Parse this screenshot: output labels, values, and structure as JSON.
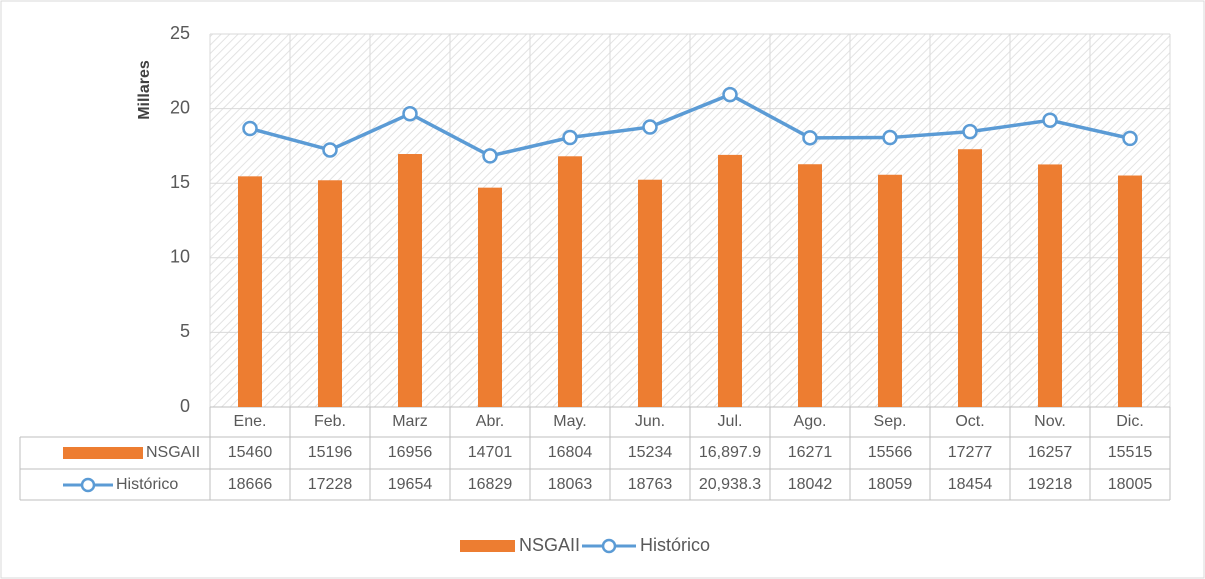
{
  "chart_data": {
    "type": "bar",
    "y_label": "Millares",
    "categories": [
      "Ene.",
      "Feb.",
      "Marz",
      "Abr.",
      "May.",
      "Jun.",
      "Jul.",
      "Ago.",
      "Sep.",
      "Oct.",
      "Nov.",
      "Dic."
    ],
    "series": [
      {
        "name": "NSGAII",
        "type": "bar",
        "color": "#ed7d31",
        "values": [
          15.46,
          15.196,
          16.956,
          14.701,
          16.804,
          15.234,
          16.8979,
          16.271,
          15.566,
          17.277,
          16.257,
          15.515
        ],
        "value_labels": [
          "15460",
          "15196",
          "16956",
          "14701",
          "16804",
          "15234",
          "16,897.9",
          "16271",
          "15566",
          "17277",
          "16257",
          "15515"
        ]
      },
      {
        "name": "Histórico",
        "type": "line",
        "color": "#5b9bd5",
        "values": [
          18.666,
          17.228,
          19.654,
          16.829,
          18.063,
          18.763,
          20.9383,
          18.042,
          18.059,
          18.454,
          19.218,
          18.005
        ],
        "value_labels": [
          "18666",
          "17228",
          "19654",
          "16829",
          "18063",
          "18763",
          "20,938.3",
          "18042",
          "18059",
          "18454",
          "19218",
          "18005"
        ]
      }
    ],
    "ylim": [
      0,
      25
    ],
    "yticks": [
      0,
      5,
      10,
      15,
      20,
      25
    ],
    "grid": true,
    "data_table": true,
    "legend": "bottom"
  }
}
